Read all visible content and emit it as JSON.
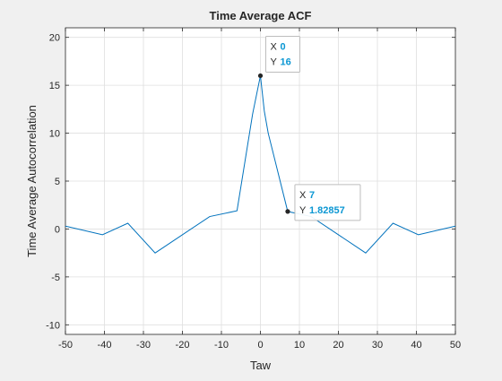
{
  "chart_data": {
    "type": "line",
    "title": "Time Average ACF",
    "xlabel": "Taw",
    "ylabel": "Time Average Autocorrelation",
    "xlim": [
      -50,
      50
    ],
    "ylim": [
      -11,
      21
    ],
    "grid": true,
    "xticks": [
      -50,
      -40,
      -30,
      -20,
      -10,
      0,
      10,
      20,
      30,
      40,
      50
    ],
    "yticks": [
      -10,
      -5,
      0,
      5,
      10,
      15,
      20
    ],
    "line_color": "#0072bd",
    "series": [
      {
        "x": [
          -50,
          -40.5,
          -34,
          -27,
          -13,
          -6,
          -2,
          -1,
          0,
          1,
          2,
          7,
          13,
          27,
          34,
          40.5,
          50
        ],
        "y": [
          0.3,
          -0.6,
          0.6,
          -2.5,
          1.3,
          1.9,
          12.0,
          14.0,
          16.0,
          12.3,
          10.0,
          1.82857,
          1.3,
          -2.5,
          0.6,
          -0.6,
          0.3
        ]
      }
    ],
    "datatips": [
      {
        "x_label": "X",
        "x_value": "0",
        "y_label": "Y",
        "y_value": "16",
        "x": 0,
        "y": 16
      },
      {
        "x_label": "X",
        "x_value": "7",
        "y_label": "Y",
        "y_value": "1.82857",
        "x": 7,
        "y": 1.82857
      }
    ]
  }
}
